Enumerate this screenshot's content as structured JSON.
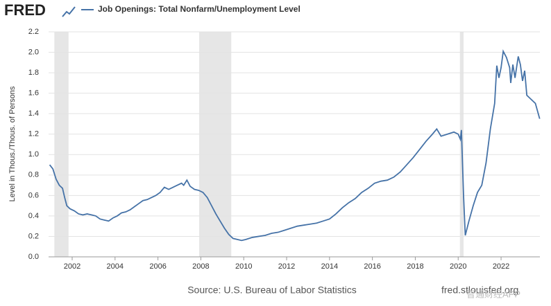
{
  "logo": "FRED",
  "chart_data": {
    "type": "line",
    "y_label": "Level in Thous./Thous. of Persons",
    "x": [
      2000.95,
      2001.1,
      2001.25,
      2001.4,
      2001.55,
      2001.65,
      2001.75,
      2001.9,
      2002.1,
      2002.3,
      2002.5,
      2002.7,
      2002.9,
      2003.1,
      2003.3,
      2003.5,
      2003.7,
      2003.9,
      2004.1,
      2004.3,
      2004.5,
      2004.7,
      2004.9,
      2005.1,
      2005.3,
      2005.5,
      2005.7,
      2005.9,
      2006.1,
      2006.3,
      2006.5,
      2006.7,
      2006.9,
      2007.1,
      2007.2,
      2007.35,
      2007.5,
      2007.7,
      2007.9,
      2008.1,
      2008.3,
      2008.5,
      2008.7,
      2008.9,
      2009.1,
      2009.3,
      2009.5,
      2009.7,
      2009.9,
      2010.1,
      2010.4,
      2010.7,
      2011.0,
      2011.3,
      2011.6,
      2011.9,
      2012.2,
      2012.5,
      2012.8,
      2013.1,
      2013.4,
      2013.7,
      2014.0,
      2014.3,
      2014.6,
      2014.9,
      2015.2,
      2015.5,
      2015.8,
      2016.1,
      2016.4,
      2016.7,
      2017.0,
      2017.3,
      2017.6,
      2017.9,
      2018.2,
      2018.5,
      2018.8,
      2019.0,
      2019.2,
      2019.5,
      2019.8,
      2020.0,
      2020.1,
      2020.15,
      2020.25,
      2020.33,
      2020.5,
      2020.7,
      2020.9,
      2021.1,
      2021.3,
      2021.5,
      2021.7,
      2021.8,
      2021.9,
      2022.0,
      2022.1,
      2022.25,
      2022.4,
      2022.45,
      2022.55,
      2022.65,
      2022.8,
      2022.9,
      2023.0,
      2023.1,
      2023.2,
      2023.4,
      2023.6,
      2023.8
    ],
    "series": [
      {
        "name": "Job Openings: Total Nonfarm/Unemployment Level",
        "color": "#4572a7",
        "values": [
          0.9,
          0.86,
          0.76,
          0.7,
          0.67,
          0.58,
          0.5,
          0.47,
          0.45,
          0.42,
          0.41,
          0.42,
          0.41,
          0.4,
          0.37,
          0.36,
          0.35,
          0.38,
          0.4,
          0.43,
          0.44,
          0.46,
          0.49,
          0.52,
          0.55,
          0.56,
          0.58,
          0.6,
          0.63,
          0.68,
          0.66,
          0.68,
          0.7,
          0.72,
          0.7,
          0.75,
          0.69,
          0.66,
          0.65,
          0.63,
          0.58,
          0.5,
          0.42,
          0.35,
          0.28,
          0.22,
          0.18,
          0.17,
          0.16,
          0.17,
          0.19,
          0.2,
          0.21,
          0.23,
          0.24,
          0.26,
          0.28,
          0.3,
          0.31,
          0.32,
          0.33,
          0.35,
          0.37,
          0.42,
          0.48,
          0.53,
          0.57,
          0.63,
          0.67,
          0.72,
          0.74,
          0.75,
          0.78,
          0.83,
          0.9,
          0.97,
          1.05,
          1.13,
          1.2,
          1.25,
          1.18,
          1.2,
          1.22,
          1.2,
          1.15,
          1.24,
          0.6,
          0.21,
          0.35,
          0.5,
          0.63,
          0.7,
          0.92,
          1.25,
          1.5,
          1.87,
          1.75,
          1.85,
          2.01,
          1.95,
          1.85,
          1.7,
          1.88,
          1.75,
          1.96,
          1.88,
          1.72,
          1.82,
          1.58,
          1.54,
          1.5,
          1.35
        ]
      }
    ],
    "shaded_periods": [
      [
        2001.17,
        2001.83
      ],
      [
        2007.92,
        2009.42
      ],
      [
        2020.08,
        2020.25
      ]
    ],
    "xlim": [
      2000.9,
      2023.81
    ],
    "xticks": [
      2002,
      2004,
      2006,
      2008,
      2010,
      2012,
      2014,
      2016,
      2018,
      2020,
      2022
    ],
    "ylim": [
      0,
      2.2
    ],
    "yticks": [
      {
        "value": 0,
        "label": "0.0"
      },
      0.2,
      0.4,
      0.6,
      0.8,
      {
        "value": 1,
        "label": "1.0"
      },
      1.2,
      1.4,
      1.6,
      1.8,
      {
        "value": 2,
        "label": "2.0"
      },
      2.2
    ],
    "grid": true
  },
  "footer": {
    "source": "Source: U.S. Bureau of Labor Statistics",
    "url": "fred.stlouisfed.org",
    "watermark": "智通财经APP"
  }
}
